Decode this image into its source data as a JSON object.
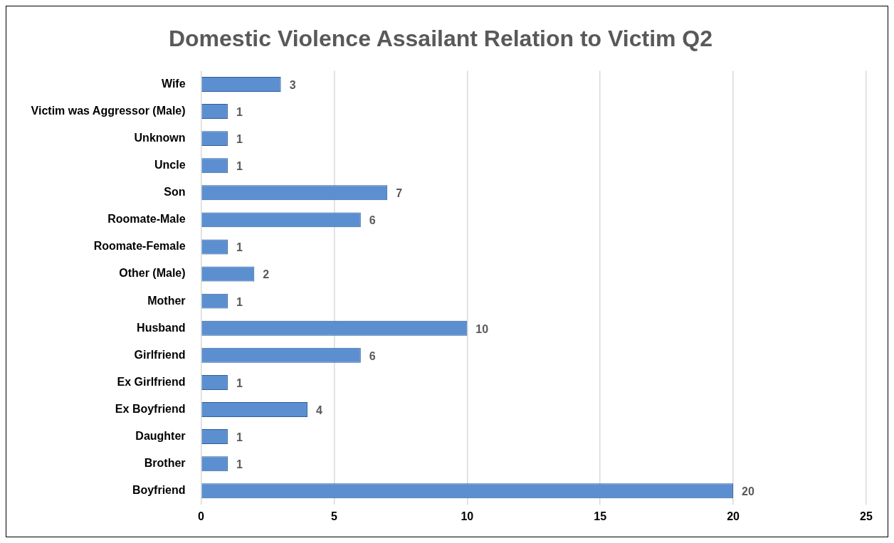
{
  "chart_data": {
    "type": "bar",
    "orientation": "horizontal",
    "title": "Domestic Violence Assailant Relation to Victim Q2",
    "categories": [
      "Wife",
      "Victim was Aggressor (Male)",
      "Unknown",
      "Uncle",
      "Son",
      "Roomate-Male",
      "Roomate-Female",
      "Other (Male)",
      "Mother",
      "Husband",
      "Girlfriend",
      "Ex Girlfriend",
      "Ex Boyfriend",
      "Daughter",
      "Brother",
      "Boyfriend"
    ],
    "values": [
      3,
      1,
      1,
      1,
      7,
      6,
      1,
      2,
      1,
      10,
      6,
      1,
      4,
      1,
      1,
      20
    ],
    "color": "#5b8fd0",
    "xlim": [
      0,
      25
    ],
    "xticks": [
      0,
      5,
      10,
      15,
      20,
      25
    ],
    "grid": "x",
    "data_labels": true
  }
}
